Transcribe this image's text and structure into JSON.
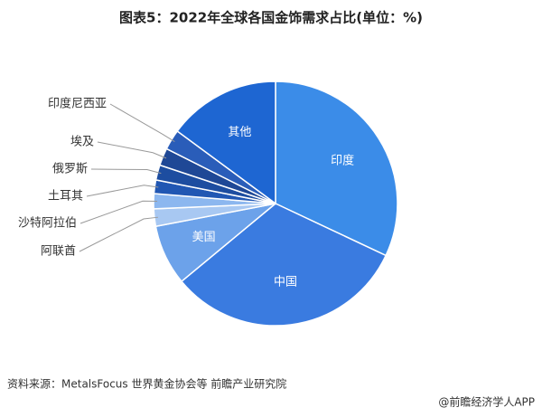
{
  "chart_data": {
    "type": "pie",
    "title": "图表5：2022年全球各国金饰需求占比(单位：%)",
    "categories": [
      "印度",
      "中国",
      "美国",
      "阿联酋",
      "沙特阿拉伯",
      "土耳其",
      "俄罗斯",
      "埃及",
      "印度尼西亚",
      "其他"
    ],
    "values": [
      32,
      32,
      8,
      2.3,
      2,
      1.8,
      2,
      2.3,
      2.7,
      14.9
    ],
    "colors": [
      "#3b8ce8",
      "#3a7be0",
      "#6ca2ea",
      "#a8c8f2",
      "#8cb7ef",
      "#2157b3",
      "#1d4da0",
      "#1f4896",
      "#2a5db9",
      "#1e66d2"
    ],
    "source": "资料来源：MetalsFocus 世界黄金协会等 前瞻产业研究院",
    "footer": "@前瞻经济学人APP"
  }
}
